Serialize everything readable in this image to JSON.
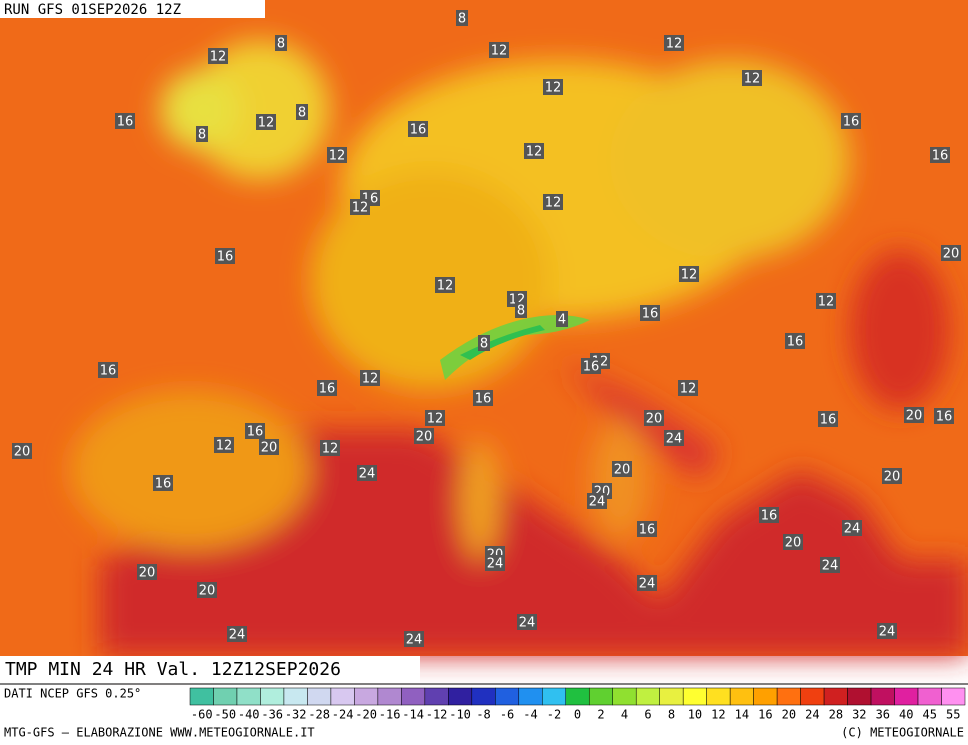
{
  "header": {
    "run": "RUN GFS 01SEP2026 12Z"
  },
  "map": {
    "labels": [
      8,
      8,
      12,
      12,
      12,
      12,
      12,
      16,
      8,
      8,
      12,
      16,
      12,
      12,
      16,
      16,
      16,
      12,
      12,
      16,
      20,
      12,
      12,
      8,
      4,
      12,
      12,
      16,
      8,
      16,
      16,
      12,
      16,
      12,
      16,
      12,
      16,
      12,
      20,
      20,
      24,
      16,
      20,
      16,
      20,
      12,
      16,
      20,
      12,
      24,
      20,
      20,
      16,
      20,
      24,
      16,
      16,
      24,
      20,
      20,
      24,
      24,
      20,
      24,
      20,
      24,
      24,
      24,
      24
    ]
  },
  "footer": {
    "title": "TMP MIN 24 HR Val. 12Z12SEP2026",
    "source": "DATI NCEP GFS 0.25°",
    "credit": "MTG-GFS — ELABORAZIONE WWW.METEOGIORNALE.IT",
    "copyright": "(C) METEOGIORNALE"
  },
  "legend": {
    "ticks": [
      -60,
      -50,
      -40,
      -36,
      -32,
      -28,
      -24,
      -20,
      -16,
      -14,
      -12,
      -10,
      -8,
      -6,
      -4,
      -2,
      0,
      2,
      4,
      6,
      8,
      10,
      12,
      14,
      16,
      20,
      24,
      28,
      32,
      36,
      40,
      45,
      55
    ],
    "colors": [
      "#40c0a0",
      "#70d0b0",
      "#90e0c8",
      "#b0eedd",
      "#c8e8f0",
      "#d0d8f0",
      "#d8c8f0",
      "#c8a8e0",
      "#b088d0",
      "#9060c0",
      "#6040b0",
      "#3020a0",
      "#2030c0",
      "#2060e0",
      "#2090f0",
      "#30c0f0",
      "#20c040",
      "#60d030",
      "#90e030",
      "#c0f040",
      "#e8f040",
      "#ffff30",
      "#ffe020",
      "#ffc010",
      "#ffa000",
      "#ff7010",
      "#f04010",
      "#d02020",
      "#b01030",
      "#c01060",
      "#e020a0",
      "#f060d0",
      "#ff90f0"
    ]
  }
}
